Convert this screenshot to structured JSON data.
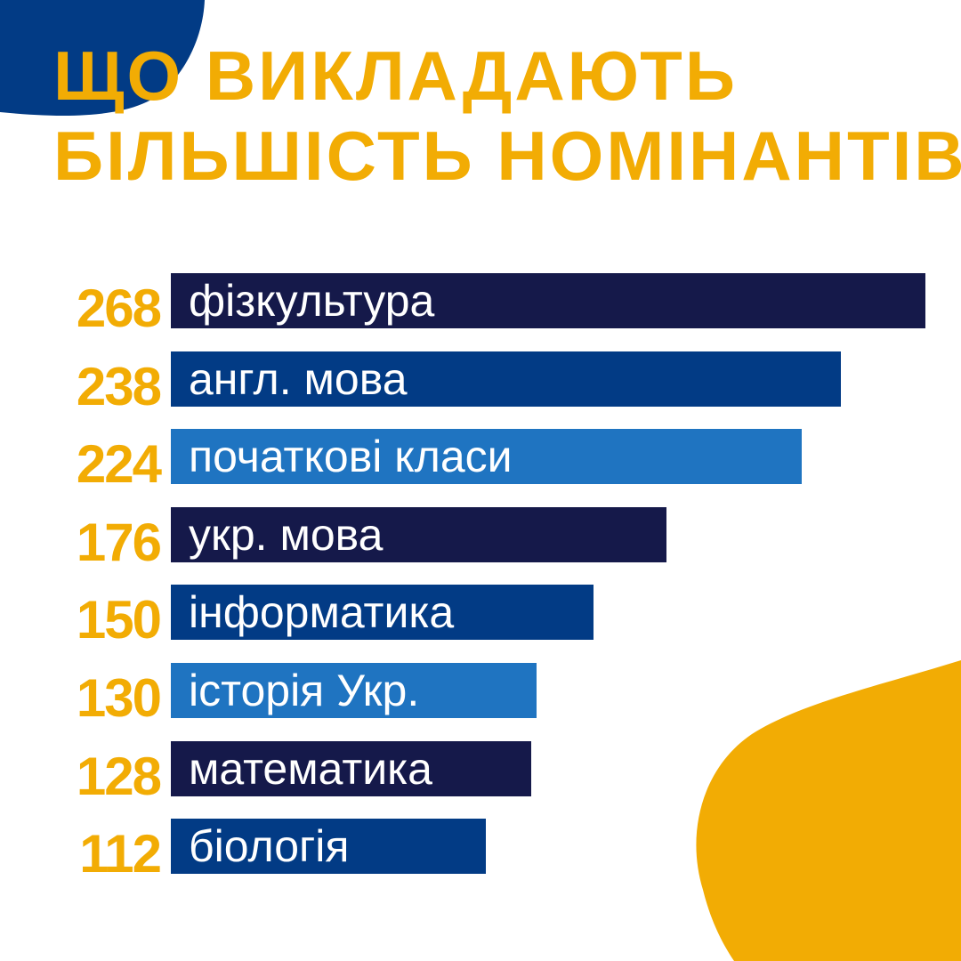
{
  "page": {
    "title_line1": "Що викладають",
    "title_line2": "більшість номінантів?"
  },
  "colors": {
    "accent_yellow": "#F2AC04",
    "navy_dark": "#15194A",
    "blue_medium": "#023B85",
    "blue_light": "#1F74C1"
  },
  "chart_data": {
    "type": "bar",
    "orientation": "horizontal",
    "title": "Що викладають більшість номінантів?",
    "categories": [
      "фізкультура",
      "англ. мова",
      "початкові класи",
      "укр. мова",
      "інформатика",
      "історія Укр.",
      "математика",
      "біологія"
    ],
    "values": [
      268,
      238,
      224,
      176,
      150,
      130,
      128,
      112
    ],
    "value_labels": [
      "268",
      "238",
      "224",
      "176",
      "150",
      "130",
      "128",
      "112"
    ],
    "bar_colors": [
      "#15194A",
      "#023B85",
      "#1F74C1",
      "#15194A",
      "#023B85",
      "#1F74C1",
      "#15194A",
      "#023B85"
    ],
    "xlim": [
      0,
      268
    ],
    "xlabel": "",
    "ylabel": "",
    "grid": false,
    "legend": false
  }
}
